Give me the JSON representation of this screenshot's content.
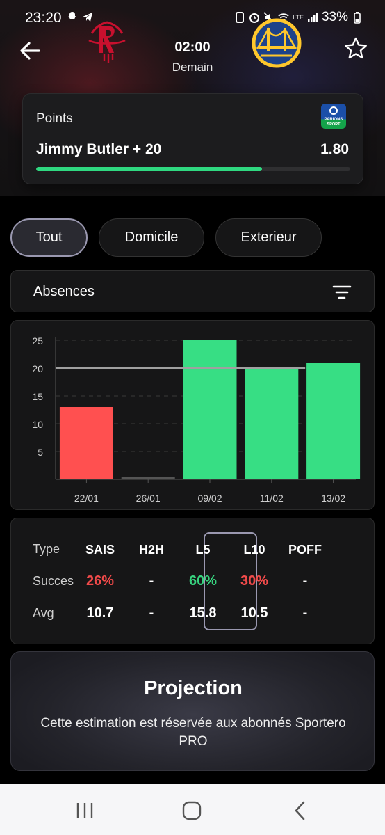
{
  "status_bar": {
    "time": "23:20",
    "battery": "33%",
    "network": "LTE"
  },
  "match": {
    "home_team_icon": "rockets-logo",
    "away_team_icon": "warriors-logo",
    "time": "02:00",
    "day": "Demain"
  },
  "bet": {
    "market": "Points",
    "selection": "Jimmy Butler + 20",
    "odds": "1.80",
    "bookmaker_logo": "parions-sport-logo",
    "bookmaker_logo_text": [
      "PARIONS",
      "SPORT"
    ],
    "progress_fraction": 0.72
  },
  "filters": {
    "tabs": [
      "Tout",
      "Domicile",
      "Exterieur"
    ],
    "active": "Tout",
    "absences_label": "Absences"
  },
  "chart_data": {
    "type": "bar",
    "categories": [
      "22/01",
      "26/01",
      "09/02",
      "11/02",
      "13/02"
    ],
    "values": [
      13,
      0.3,
      25,
      20,
      21
    ],
    "threshold": 20,
    "ylim": [
      0,
      25
    ],
    "yticks": [
      5,
      10,
      15,
      20,
      25
    ],
    "grid": true,
    "colors": {
      "over": "#37de84",
      "under": "#ff5050",
      "threshold": "#a0a0a0",
      "zero": "#555555"
    }
  },
  "stats": {
    "row_labels": [
      "Type",
      "Succes",
      "Avg"
    ],
    "columns": [
      {
        "head": "SAIS",
        "success": "26%",
        "success_color": "red",
        "avg": "10.7"
      },
      {
        "head": "H2H",
        "success": "-",
        "success_color": "none",
        "avg": "-"
      },
      {
        "head": "L5",
        "success": "60%",
        "success_color": "green",
        "avg": "15.8"
      },
      {
        "head": "L10",
        "success": "30%",
        "success_color": "red",
        "avg": "10.5"
      },
      {
        "head": "POFF",
        "success": "-",
        "success_color": "none",
        "avg": "-"
      }
    ],
    "highlighted": "L5"
  },
  "projection": {
    "title": "Projection",
    "text": "Cette estimation est réservée aux abonnés Sportero PRO"
  },
  "navbar": {
    "icons": [
      "recent-apps-icon",
      "home-icon",
      "back-icon"
    ]
  }
}
